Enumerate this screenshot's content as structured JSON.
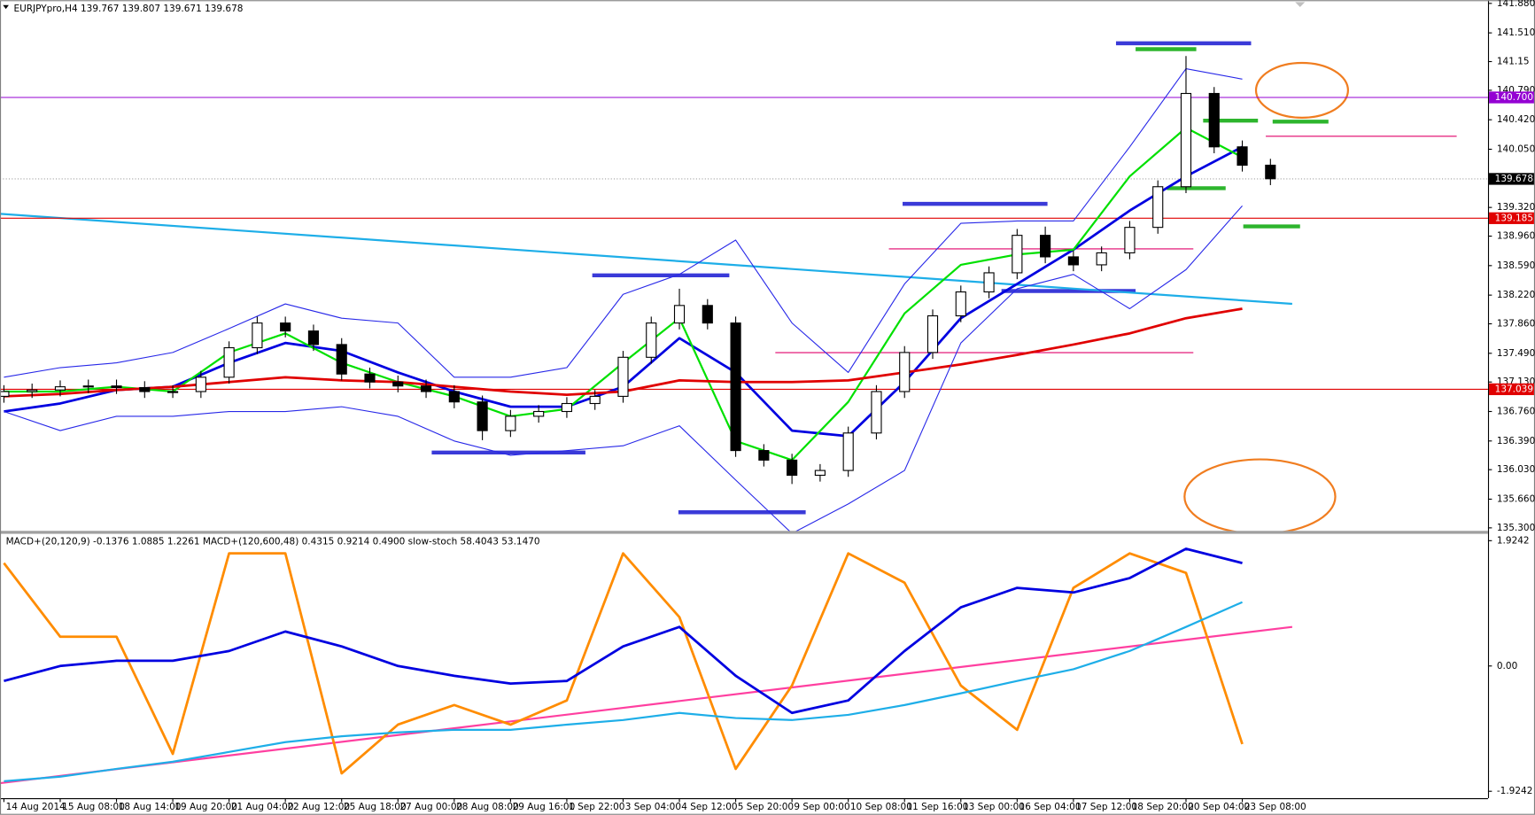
{
  "chart_data": {
    "type": "candlestick",
    "title": "EURJPYpro,H4  139.767 139.807 139.671 139.678",
    "categories": [
      "14 Aug 2014",
      "15 Aug 08:00",
      "18 Aug 14:00",
      "19 Aug 20:00",
      "21 Aug 04:00",
      "22 Aug 12:00",
      "25 Aug 18:00",
      "27 Aug 00:00",
      "28 Aug 08:00",
      "29 Aug 16:00",
      "1 Sep 22:00",
      "3 Sep 04:00",
      "4 Sep 12:00",
      "5 Sep 20:00",
      "9 Sep 00:00",
      "10 Sep 08:00",
      "11 Sep 16:00",
      "13 Sep 00:00",
      "16 Sep 04:00",
      "17 Sep 12:00",
      "18 Sep 20:00",
      "20 Sep 04:00",
      "23 Sep 08:00"
    ],
    "open": [
      136.95,
      137.01,
      137.03,
      137.07,
      137.08,
      137.06,
      137.01,
      137.01,
      137.19,
      137.56,
      137.87,
      137.77,
      137.6,
      137.23,
      137.13,
      137.08,
      137.01,
      136.88,
      136.52,
      136.7,
      136.76,
      136.86,
      136.95,
      137.44,
      137.87,
      138.09,
      137.87,
      136.27,
      136.15,
      135.96,
      136.02,
      136.49,
      137.01,
      137.5,
      137.96,
      138.26,
      138.5,
      138.97,
      138.7,
      138.6,
      138.75,
      139.07,
      139.58,
      140.75,
      140.08,
      139.85
    ],
    "high": [
      137.09,
      137.11,
      137.15,
      137.16,
      137.16,
      137.14,
      137.09,
      137.27,
      137.64,
      137.95,
      137.95,
      137.85,
      137.68,
      137.31,
      137.21,
      137.16,
      137.09,
      136.96,
      136.78,
      136.84,
      136.94,
      137.03,
      137.52,
      137.95,
      138.3,
      138.17,
      137.95,
      136.35,
      136.23,
      136.1,
      136.57,
      137.09,
      137.58,
      138.04,
      138.34,
      138.58,
      139.05,
      139.08,
      138.78,
      138.83,
      139.15,
      139.66,
      141.22,
      140.83,
      140.16,
      139.93
    ],
    "low": [
      136.87,
      136.93,
      136.95,
      136.99,
      136.98,
      136.93,
      136.93,
      136.93,
      137.11,
      137.48,
      137.69,
      137.52,
      137.15,
      137.05,
      137.0,
      136.93,
      136.8,
      136.4,
      136.44,
      136.62,
      136.68,
      136.78,
      136.87,
      137.36,
      137.79,
      137.79,
      136.19,
      136.07,
      135.85,
      135.88,
      135.94,
      136.41,
      136.93,
      137.42,
      137.88,
      138.18,
      138.42,
      138.62,
      138.52,
      138.52,
      138.67,
      138.99,
      139.5,
      140.0,
      139.77,
      139.6
    ],
    "close": [
      137.01,
      137.03,
      137.07,
      137.08,
      137.06,
      137.01,
      137.01,
      137.19,
      137.56,
      137.87,
      137.77,
      137.6,
      137.23,
      137.13,
      137.08,
      137.01,
      136.88,
      136.52,
      136.7,
      136.76,
      136.86,
      136.95,
      137.44,
      137.87,
      138.09,
      137.87,
      136.27,
      136.15,
      135.96,
      136.02,
      136.49,
      137.01,
      137.5,
      137.96,
      138.26,
      138.5,
      138.97,
      138.7,
      138.6,
      138.75,
      139.07,
      139.58,
      140.75,
      140.08,
      139.85,
      139.68
    ],
    "ylim": [
      135.25,
      141.92
    ],
    "yticks": [
      {
        "value": 141.88,
        "label": "141.880"
      },
      {
        "value": 141.51,
        "label": "141.510"
      },
      141.15,
      {
        "value": 140.79,
        "label": "140.790"
      },
      {
        "value": 140.42,
        "label": "140.420"
      },
      {
        "value": 140.05,
        "label": "140.050"
      },
      {
        "value": 139.32,
        "label": "139.320"
      },
      {
        "value": 138.96,
        "label": "138.960"
      },
      {
        "value": 138.59,
        "label": "138.590"
      },
      {
        "value": 138.22,
        "label": "138.220"
      },
      {
        "value": 137.86,
        "label": "137.860"
      },
      {
        "value": 137.49,
        "label": "137.490"
      },
      {
        "value": 137.13,
        "label": "137.130"
      },
      {
        "value": 136.76,
        "label": "136.760"
      },
      {
        "value": 136.39,
        "label": "136.390"
      },
      {
        "value": 136.03,
        "label": "136.030"
      },
      {
        "value": 135.66,
        "label": "135.660"
      },
      {
        "value": 135.3,
        "label": "135.300"
      }
    ],
    "series": [
      {
        "color": "#0000e0",
        "width": 2.5,
        "values": [
          136.76,
          136.86,
          137.03,
          137.07,
          137.37,
          137.62,
          137.52,
          137.25,
          137.01,
          136.82,
          136.82,
          137.07,
          137.68,
          137.25,
          136.52,
          136.45,
          137.13,
          137.93,
          138.36,
          138.79,
          139.28,
          139.71,
          140.08
        ]
      },
      {
        "color": "#00e000",
        "width": 2,
        "values": [
          137.01,
          137.01,
          137.07,
          137.01,
          137.5,
          137.74,
          137.37,
          137.13,
          136.95,
          136.7,
          136.79,
          137.37,
          137.93,
          136.39,
          136.15,
          136.88,
          137.99,
          138.6,
          138.73,
          138.79,
          139.71,
          140.32,
          139.95
        ]
      },
      {
        "color": "#e00000",
        "width": 2.5,
        "values": [
          136.95,
          136.98,
          137.03,
          137.07,
          137.13,
          137.19,
          137.15,
          137.13,
          137.07,
          137.01,
          136.97,
          137.01,
          137.15,
          137.13,
          137.13,
          137.15,
          137.25,
          137.35,
          137.47,
          137.6,
          137.74,
          137.93,
          138.05
        ]
      },
      {
        "color": "#2828e8",
        "width": 1,
        "values": [
          137.19,
          137.31,
          137.37,
          137.5,
          137.8,
          138.11,
          137.93,
          137.87,
          137.19,
          137.19,
          137.31,
          138.23,
          138.48,
          138.91,
          137.87,
          137.25,
          138.36,
          139.12,
          139.15,
          139.15,
          140.08,
          141.06,
          140.93
        ]
      },
      {
        "color": "#2828e8",
        "width": 1,
        "values": [
          136.76,
          136.52,
          136.7,
          136.7,
          136.76,
          136.76,
          136.82,
          136.7,
          136.39,
          136.21,
          136.27,
          136.33,
          136.58,
          135.9,
          135.23,
          135.6,
          136.02,
          137.62,
          138.3,
          138.48,
          138.05,
          138.54,
          139.34
        ]
      }
    ],
    "trend_line": {
      "color": "#1eaee8",
      "values": [
        139.24,
        138.11
      ]
    },
    "levels": [
      {
        "value": 140.7,
        "label": "140.700",
        "color": "#9400d3",
        "style": "solid"
      },
      {
        "value": 139.678,
        "label": "139.678",
        "color": "#000000",
        "style": "dotted"
      },
      {
        "value": 139.185,
        "label": "139.185",
        "color": "#e00000",
        "style": "solid"
      },
      {
        "value": 137.039,
        "label": "137.039",
        "color": "#e00000",
        "style": "solid"
      }
    ],
    "panel": {
      "title": "MACD+(20,120,9) -0.1376 1.0885 1.2261  MACD+(120,600,48) 0.4315 0.9214 0.4900  slow-stoch 58.4043 53.1470",
      "ylim": [
        -2.03,
        2.03
      ],
      "yticks": [
        1.9242,
        {
          "value": 0,
          "label": "0.00"
        },
        -1.9242
      ],
      "series": [
        {
          "color": "#ff8c00",
          "width": 2.5,
          "values": [
            1.58,
            0.45,
            0.45,
            -1.35,
            1.73,
            1.73,
            -1.65,
            -0.9,
            -0.6,
            -0.9,
            -0.53,
            1.73,
            0.75,
            -1.58,
            -0.3,
            1.73,
            1.28,
            -0.3,
            -0.98,
            1.2,
            1.73,
            1.43,
            -1.2
          ]
        },
        {
          "color": "#1eaee8",
          "width": 2,
          "values": [
            -1.77,
            -1.7,
            -1.58,
            -1.47,
            -1.32,
            -1.17,
            -1.08,
            -1.02,
            -0.98,
            -0.98,
            -0.9,
            -0.83,
            -0.72,
            -0.8,
            -0.83,
            -0.75,
            -0.6,
            -0.42,
            -0.23,
            -0.05,
            0.23,
            0.6,
            0.98
          ]
        },
        {
          "color": "#0000e0",
          "width": 2.5,
          "values": [
            -0.23,
            0,
            0.08,
            0.08,
            0.23,
            0.53,
            0.3,
            0,
            -0.15,
            -0.27,
            -0.23,
            0.3,
            0.6,
            -0.15,
            -0.72,
            -0.53,
            0.23,
            0.9,
            1.2,
            1.13,
            1.35,
            1.8,
            1.58
          ]
        }
      ],
      "trend_line": {
        "color": "#ff3fa0",
        "values": [
          -1.8,
          0.6
        ]
      }
    }
  }
}
